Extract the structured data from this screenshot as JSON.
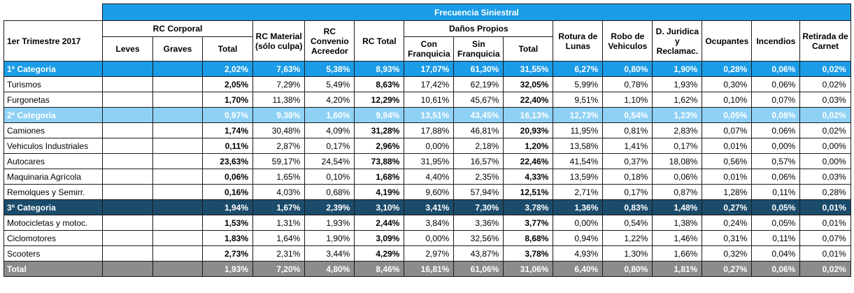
{
  "header": {
    "band_title": "Frecuencia Siniestral",
    "period": "1er Trimestre 2017",
    "groups": {
      "rc_corporal": "RC Corporal",
      "danos_propios": "Daños Propios"
    },
    "columns": {
      "leves": "Leves",
      "graves": "Graves",
      "rc_corporal_total": "Total",
      "rc_material_l1": "RC Material",
      "rc_material_l2": "(sólo culpa)",
      "rc_convenio_l1": "RC",
      "rc_convenio_l2": "Convenio",
      "rc_convenio_l3": "Acreedor",
      "rc_total": "RC Total",
      "con_franquicia_l1": "Con",
      "con_franquicia_l2": "Franquicia",
      "sin_franquicia_l1": "Sin",
      "sin_franquicia_l2": "Franquicia",
      "danos_total": "Total",
      "rotura_l1": "Rotura de",
      "rotura_l2": "Lunas",
      "robo_l1": "Robo de",
      "robo_l2": "Vehiculos",
      "djur_l1": "D. Juridica",
      "djur_l2": "y",
      "djur_l3": "Reclamac.",
      "ocupantes": "Ocupantes",
      "incendios": "Incendios",
      "retirada_l1": "Retirada de",
      "retirada_l2": "Carnet"
    }
  },
  "rows": [
    {
      "type": "cat1",
      "label": "1ª Categoria",
      "leves": "",
      "graves": "",
      "v": [
        "2,02%",
        "7,63%",
        "5,38%",
        "8,93%",
        "17,07%",
        "61,30%",
        "31,55%",
        "6,27%",
        "0,80%",
        "1,90%",
        "0,28%",
        "0,06%",
        "0,02%"
      ]
    },
    {
      "type": "item",
      "label": "Turismos",
      "leves": "",
      "graves": "",
      "v": [
        "2,05%",
        "7,29%",
        "5,49%",
        "8,63%",
        "17,42%",
        "62,19%",
        "32,05%",
        "5,99%",
        "0,78%",
        "1,93%",
        "0,30%",
        "0,06%",
        "0,02%"
      ]
    },
    {
      "type": "item",
      "label": "Furgonetas",
      "leves": "",
      "graves": "",
      "v": [
        "1,70%",
        "11,38%",
        "4,20%",
        "12,29%",
        "10,61%",
        "45,67%",
        "22,40%",
        "9,51%",
        "1,10%",
        "1,62%",
        "0,10%",
        "0,07%",
        "0,03%"
      ]
    },
    {
      "type": "cat2",
      "label": "2ª Categoria",
      "leves": "",
      "graves": "",
      "v": [
        "0,97%",
        "9,38%",
        "1,60%",
        "9,94%",
        "13,51%",
        "43,45%",
        "16,13%",
        "12,73%",
        "0,54%",
        "1,23%",
        "0,05%",
        "0,08%",
        "0,02%"
      ]
    },
    {
      "type": "item",
      "label": "Camiones",
      "leves": "",
      "graves": "",
      "v": [
        "1,74%",
        "30,48%",
        "4,09%",
        "31,28%",
        "17,88%",
        "46,81%",
        "20,93%",
        "11,95%",
        "0,81%",
        "2,83%",
        "0,07%",
        "0,06%",
        "0,02%"
      ]
    },
    {
      "type": "item",
      "label": "Vehiculos Industriales",
      "leves": "",
      "graves": "",
      "v": [
        "0,11%",
        "2,87%",
        "0,17%",
        "2,96%",
        "0,00%",
        "2,18%",
        "1,20%",
        "13,58%",
        "1,41%",
        "0,17%",
        "0,01%",
        "0,00%",
        "0,00%"
      ]
    },
    {
      "type": "item",
      "label": "Autocares",
      "leves": "",
      "graves": "",
      "v": [
        "23,63%",
        "59,17%",
        "24,54%",
        "73,88%",
        "31,95%",
        "16,57%",
        "22,46%",
        "41,54%",
        "0,37%",
        "18,08%",
        "0,56%",
        "0,57%",
        "0,00%"
      ]
    },
    {
      "type": "item",
      "label": "Maquinaria Agrícola",
      "leves": "",
      "graves": "",
      "v": [
        "0,06%",
        "1,65%",
        "0,10%",
        "1,68%",
        "4,40%",
        "2,35%",
        "4,33%",
        "13,59%",
        "0,18%",
        "0,06%",
        "0,01%",
        "0,06%",
        "0,03%"
      ]
    },
    {
      "type": "item",
      "label": "Remolques y Semirr.",
      "leves": "",
      "graves": "",
      "v": [
        "0,16%",
        "4,03%",
        "0,68%",
        "4,19%",
        "9,60%",
        "57,94%",
        "12,51%",
        "2,71%",
        "0,17%",
        "0,87%",
        "1,28%",
        "0,11%",
        "0,28%"
      ]
    },
    {
      "type": "cat3",
      "label": "3ª Categoria",
      "leves": "",
      "graves": "",
      "v": [
        "1,94%",
        "1,67%",
        "2,39%",
        "3,10%",
        "3,41%",
        "7,30%",
        "3,78%",
        "1,36%",
        "0,83%",
        "1,48%",
        "0,27%",
        "0,05%",
        "0,01%"
      ]
    },
    {
      "type": "item",
      "label": "Motocicletas y motoc.",
      "leves": "",
      "graves": "",
      "v": [
        "1,53%",
        "1,31%",
        "1,93%",
        "2,44%",
        "3,84%",
        "3,36%",
        "3,77%",
        "0,00%",
        "0,54%",
        "1,38%",
        "0,24%",
        "0,05%",
        "0,01%"
      ]
    },
    {
      "type": "item",
      "label": "Ciclomotores",
      "leves": "",
      "graves": "",
      "v": [
        "1,83%",
        "1,64%",
        "1,90%",
        "3,09%",
        "0,00%",
        "32,56%",
        "8,68%",
        "0,94%",
        "1,22%",
        "1,46%",
        "0,31%",
        "0,11%",
        "0,07%"
      ]
    },
    {
      "type": "item",
      "label": "Scooters",
      "leves": "",
      "graves": "",
      "v": [
        "2,73%",
        "2,31%",
        "3,44%",
        "4,29%",
        "2,97%",
        "43,87%",
        "3,78%",
        "4,93%",
        "1,30%",
        "1,66%",
        "0,32%",
        "0,04%",
        "0,01%"
      ]
    },
    {
      "type": "tot",
      "label": "Total",
      "leves": "",
      "graves": "",
      "v": [
        "1,93%",
        "7,20%",
        "4,80%",
        "8,46%",
        "16,81%",
        "61,06%",
        "31,06%",
        "6,40%",
        "0,80%",
        "1,81%",
        "0,27%",
        "0,06%",
        "0,02%"
      ]
    }
  ],
  "colors": {
    "header_band": "#1b9ce6",
    "cat1": "#1b9ce6",
    "cat2": "#8ed1f5",
    "cat3": "#1c4c6b",
    "total": "#8c8c8c"
  }
}
